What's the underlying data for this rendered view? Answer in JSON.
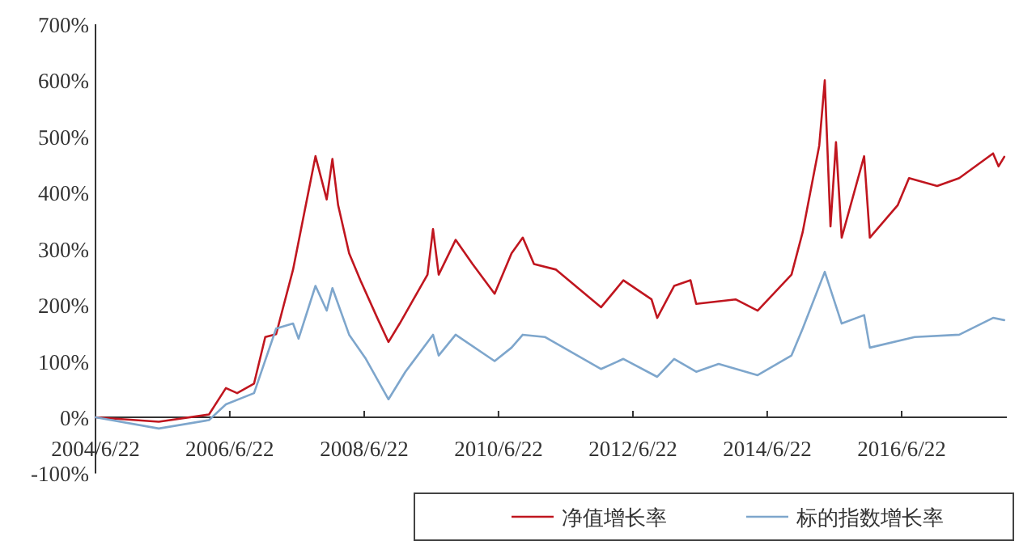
{
  "chart_data": {
    "type": "line",
    "xlim": [
      "2004-06-22",
      "2018-01-15"
    ],
    "xticks": [
      {
        "value": "2004-06-22",
        "label": "2004/6/22"
      },
      {
        "value": "2006-06-22",
        "label": "2006/6/22"
      },
      {
        "value": "2008-06-22",
        "label": "2008/6/22"
      },
      {
        "value": "2010-06-22",
        "label": "2010/6/22"
      },
      {
        "value": "2012-06-22",
        "label": "2012/6/22"
      },
      {
        "value": "2014-06-22",
        "label": "2014/6/22"
      },
      {
        "value": "2016-06-22",
        "label": "2016/6/22"
      }
    ],
    "ylim": [
      -100,
      700
    ],
    "yticks": [
      {
        "value": -100,
        "label": "-100%"
      },
      {
        "value": 0,
        "label": "0%"
      },
      {
        "value": 100,
        "label": "100%"
      },
      {
        "value": 200,
        "label": "200%"
      },
      {
        "value": 300,
        "label": "300%"
      },
      {
        "value": 400,
        "label": "400%"
      },
      {
        "value": 500,
        "label": "500%"
      },
      {
        "value": 600,
        "label": "600%"
      },
      {
        "value": 700,
        "label": "700%"
      }
    ],
    "grid": false,
    "legend": "bottom",
    "marker": "none",
    "line_style": "solid",
    "series": [
      {
        "name": "净值增长率",
        "color": "#c0161f",
        "x": [
          "2004-06-22",
          "2005-06",
          "2006-03",
          "2006-06",
          "2006-08",
          "2006-11",
          "2007-01",
          "2007-03",
          "2007-06",
          "2007-10",
          "2007-12",
          "2008-01",
          "2008-02",
          "2008-04",
          "2008-06",
          "2008-09",
          "2008-11",
          "2009-01",
          "2009-06",
          "2009-07",
          "2009-08",
          "2009-11",
          "2010-02",
          "2010-06",
          "2010-09",
          "2010-11",
          "2011-01",
          "2011-05",
          "2012-01",
          "2012-05",
          "2012-10",
          "2012-11",
          "2013-02",
          "2013-05",
          "2013-06",
          "2014-01",
          "2014-05",
          "2014-11",
          "2015-01",
          "2015-04",
          "2015-05",
          "2015-06",
          "2015-07",
          "2015-08",
          "2015-12",
          "2016-01",
          "2016-06",
          "2016-08",
          "2017-01",
          "2017-05",
          "2017-11",
          "2017-12",
          "2018-01"
        ],
        "values": [
          0,
          -8,
          5,
          52,
          43,
          60,
          143,
          148,
          263,
          465,
          388,
          460,
          378,
          292,
          244,
          177,
          134,
          167,
          254,
          335,
          254,
          316,
          273,
          220,
          292,
          320,
          273,
          263,
          196,
          244,
          210,
          177,
          234,
          244,
          202,
          210,
          190,
          254,
          330,
          484,
          600,
          340,
          490,
          320,
          465,
          320,
          378,
          426,
          412,
          426,
          470,
          447,
          464
        ]
      },
      {
        "name": "标的指数增长率",
        "color": "#7ea6cc",
        "x": [
          "2004-06-22",
          "2005-06",
          "2006-03",
          "2006-06",
          "2006-11",
          "2007-03",
          "2007-06",
          "2007-07",
          "2007-10",
          "2007-12",
          "2008-01",
          "2008-04",
          "2008-07",
          "2008-11",
          "2009-02",
          "2009-07",
          "2009-08",
          "2009-11",
          "2010-06",
          "2010-09",
          "2010-11",
          "2011-03",
          "2012-01",
          "2012-05",
          "2012-11",
          "2013-02",
          "2013-06",
          "2013-10",
          "2014-05",
          "2014-11",
          "2015-01",
          "2015-05",
          "2015-08",
          "2015-12",
          "2016-01",
          "2016-09",
          "2017-05",
          "2017-11",
          "2018-01"
        ],
        "values": [
          0,
          -20,
          -5,
          23,
          43,
          158,
          167,
          140,
          234,
          190,
          230,
          147,
          104,
          32,
          81,
          147,
          110,
          147,
          100,
          124,
          147,
          143,
          86,
          104,
          72,
          104,
          81,
          95,
          75,
          110,
          158,
          259,
          167,
          182,
          124,
          143,
          147,
          177,
          173
        ]
      }
    ]
  }
}
